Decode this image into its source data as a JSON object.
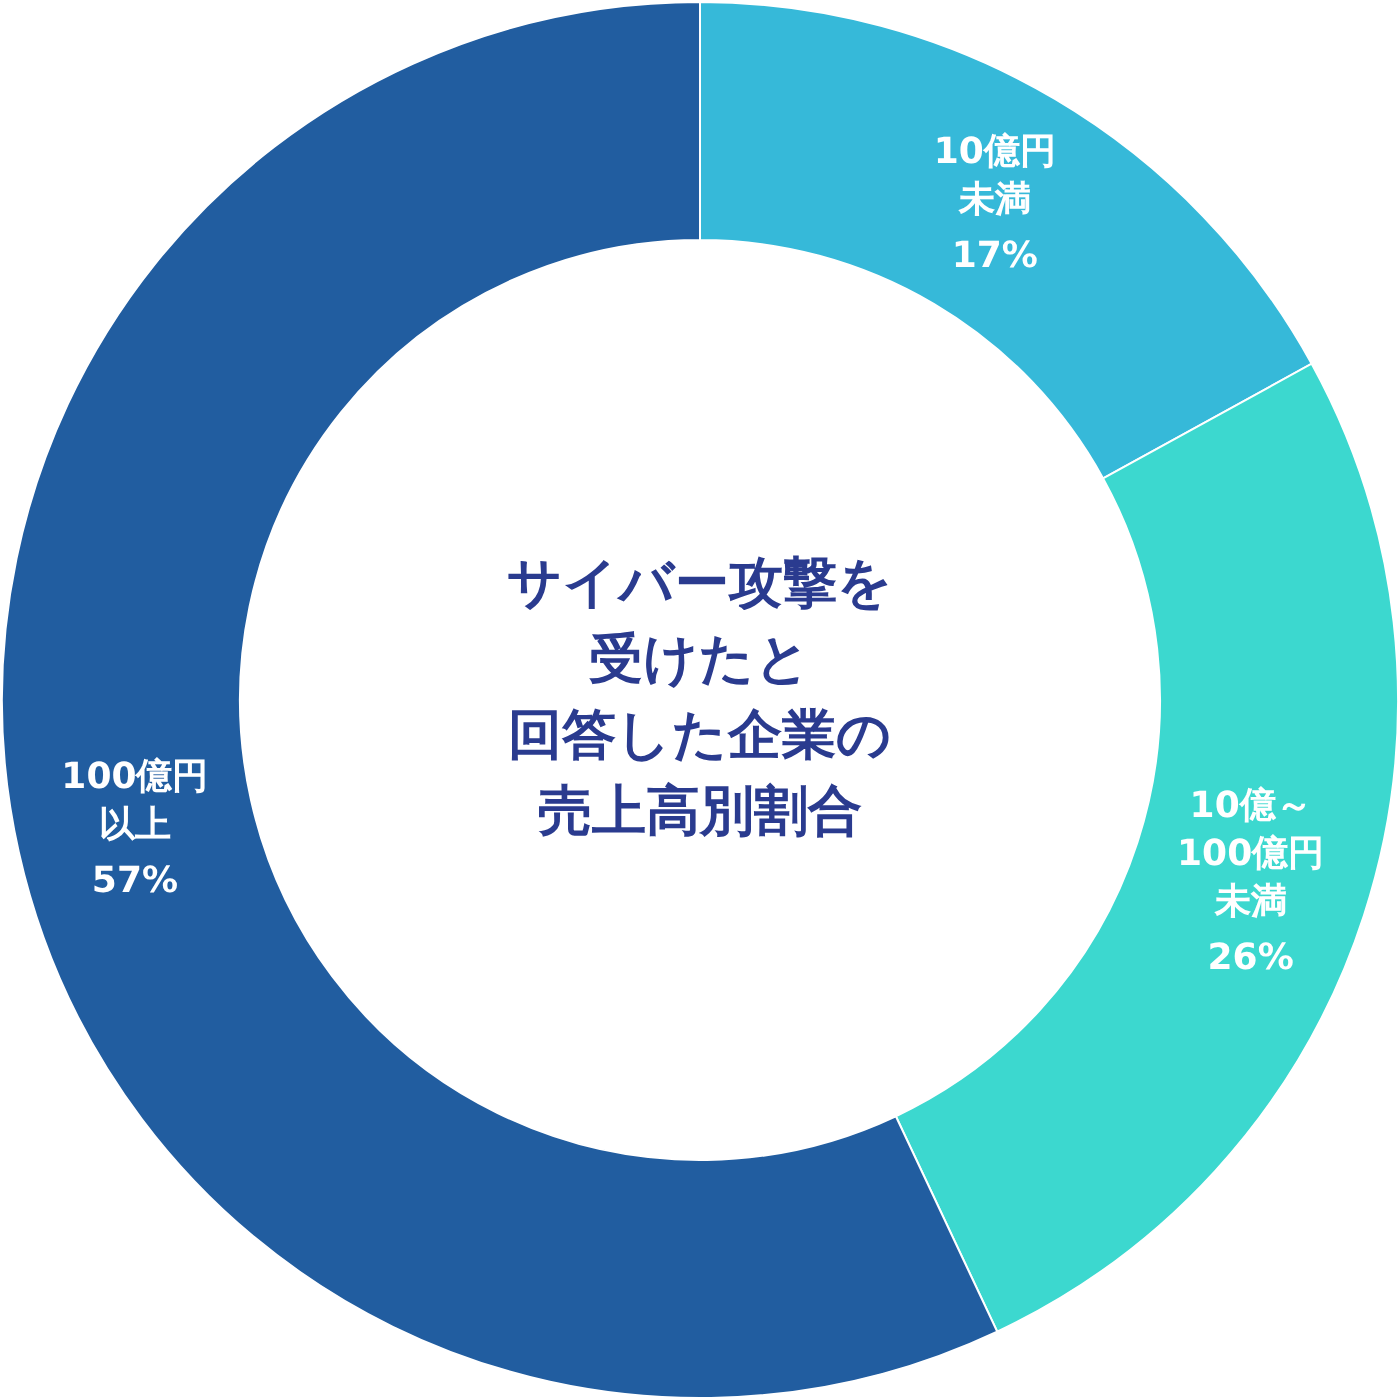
{
  "chart_data": {
    "type": "donut",
    "title": "サイバー攻撃を受けたと回答した企業の売上高別割合",
    "categories": [
      "10億円未満",
      "10億～100億円未満",
      "100億円以上"
    ],
    "values": [
      17,
      26,
      57
    ],
    "value_labels": [
      "17%",
      "26%",
      "57%"
    ],
    "colors": [
      "#36b9d9",
      "#3cd8cf",
      "#215da0"
    ],
    "legend": false
  }
}
